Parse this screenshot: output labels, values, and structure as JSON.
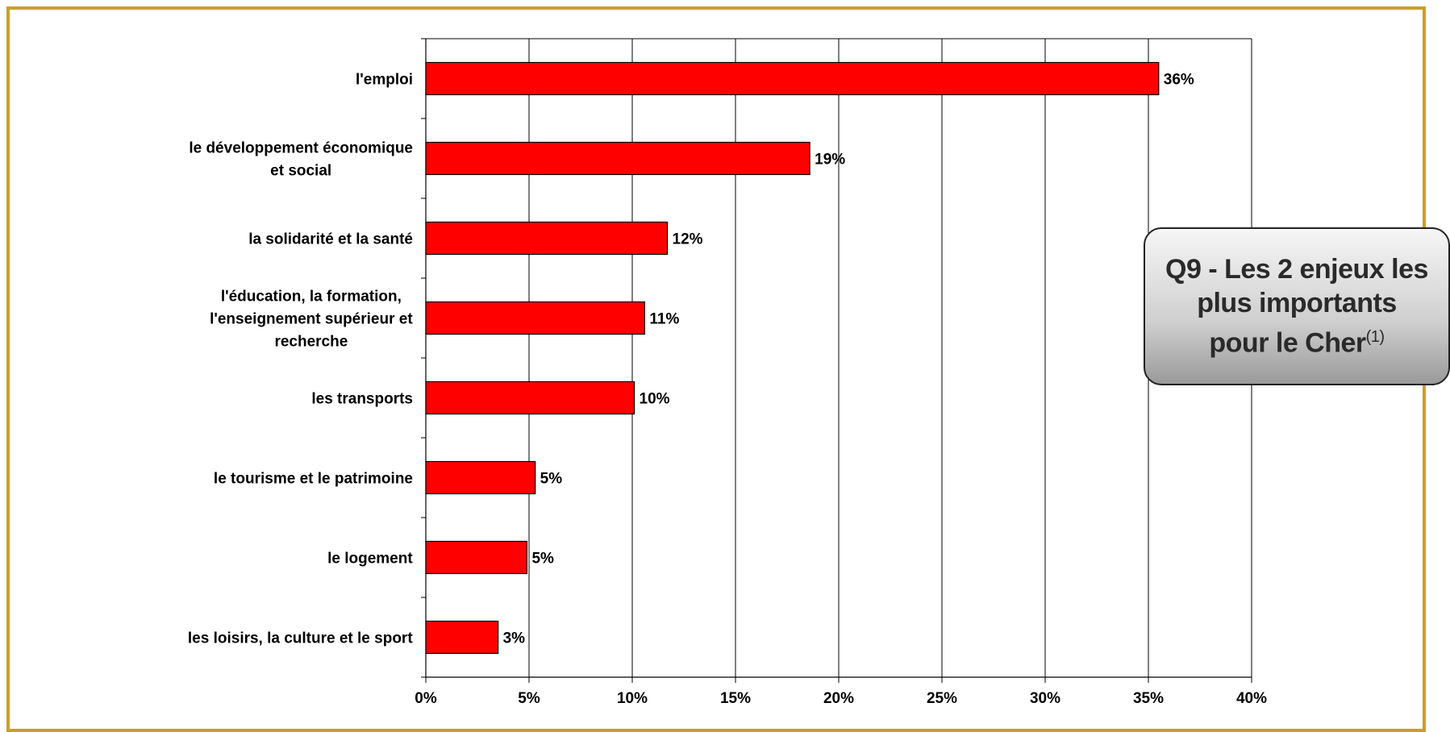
{
  "chart_data": {
    "type": "bar",
    "orientation": "horizontal",
    "categories": [
      "l'emploi",
      "le développement économique\net social",
      "la solidarité et la santé",
      "l'éducation, la formation,\nl'enseignement supérieur et\nrecherche",
      "les transports",
      "le tourisme et le patrimoine",
      "le logement",
      "les loisirs, la culture et le sport"
    ],
    "values": [
      35.5,
      18.6,
      11.7,
      10.6,
      10.1,
      5.3,
      4.9,
      3.5
    ],
    "value_labels": [
      "36%",
      "19%",
      "12%",
      "11%",
      "10%",
      "5%",
      "5%",
      "3%"
    ],
    "xticks": [
      "0%",
      "5%",
      "10%",
      "15%",
      "20%",
      "25%",
      "30%",
      "35%",
      "40%"
    ],
    "xlim": [
      0,
      40
    ],
    "grid": true,
    "bar_color": "#ff0000",
    "title": "Q9 - Les 2 enjeux les\nplus importants\npour le Cher",
    "title_superscript": "(1)"
  }
}
